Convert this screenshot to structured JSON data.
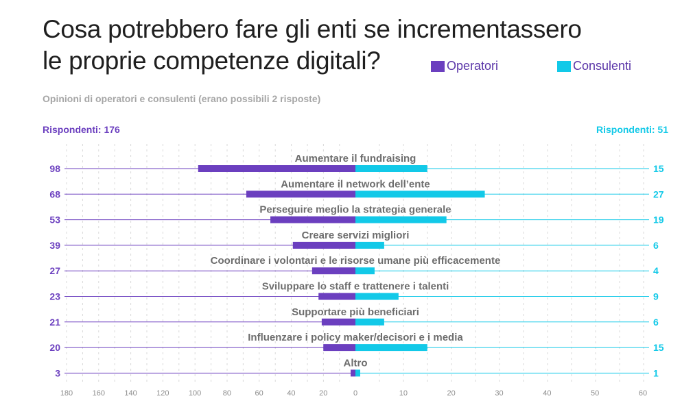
{
  "title_lines": [
    "Cosa potrebbero fare gli enti se incrementassero",
    "le proprie competenze digitali?"
  ],
  "subtitle": "Opinioni di operatori e consulenti (erano possibili 2 risposte)",
  "respondents": {
    "left_label": "Rispondenti:",
    "left_value": "176",
    "right_label": "Rispondenti:",
    "right_value": "51"
  },
  "colors": {
    "operatori": "#6b3fbf",
    "consulenti": "#12c9e8"
  },
  "chart_data": {
    "type": "bar",
    "orientation": "horizontal-diverging",
    "categories": [
      "Aumentare il fundraising",
      "Aumentare il network dell’ente",
      "Perseguire meglio la strategia generale",
      "Creare servizi migliori",
      "Coordinare i volontari e le risorse umane più efficacemente",
      "Sviluppare lo staff e trattenere i talenti",
      "Supportare più beneficiari",
      "Influenzare i policy maker/decisori e i media",
      "Altro"
    ],
    "series": [
      {
        "name": "Operatori",
        "values": [
          98,
          68,
          53,
          39,
          27,
          23,
          21,
          20,
          3
        ]
      },
      {
        "name": "Consulenti",
        "values": [
          15,
          27,
          19,
          6,
          4,
          9,
          6,
          15,
          1
        ]
      }
    ],
    "left_axis": {
      "ticks": [
        "180",
        "160",
        "140",
        "120",
        "100",
        "80",
        "60",
        "40",
        "20",
        "0"
      ],
      "range": [
        0,
        180
      ]
    },
    "right_axis": {
      "ticks": [
        "10",
        "20",
        "30",
        "40",
        "50",
        "60"
      ],
      "range": [
        0,
        60
      ]
    },
    "legend": "top-right",
    "grid": true
  }
}
